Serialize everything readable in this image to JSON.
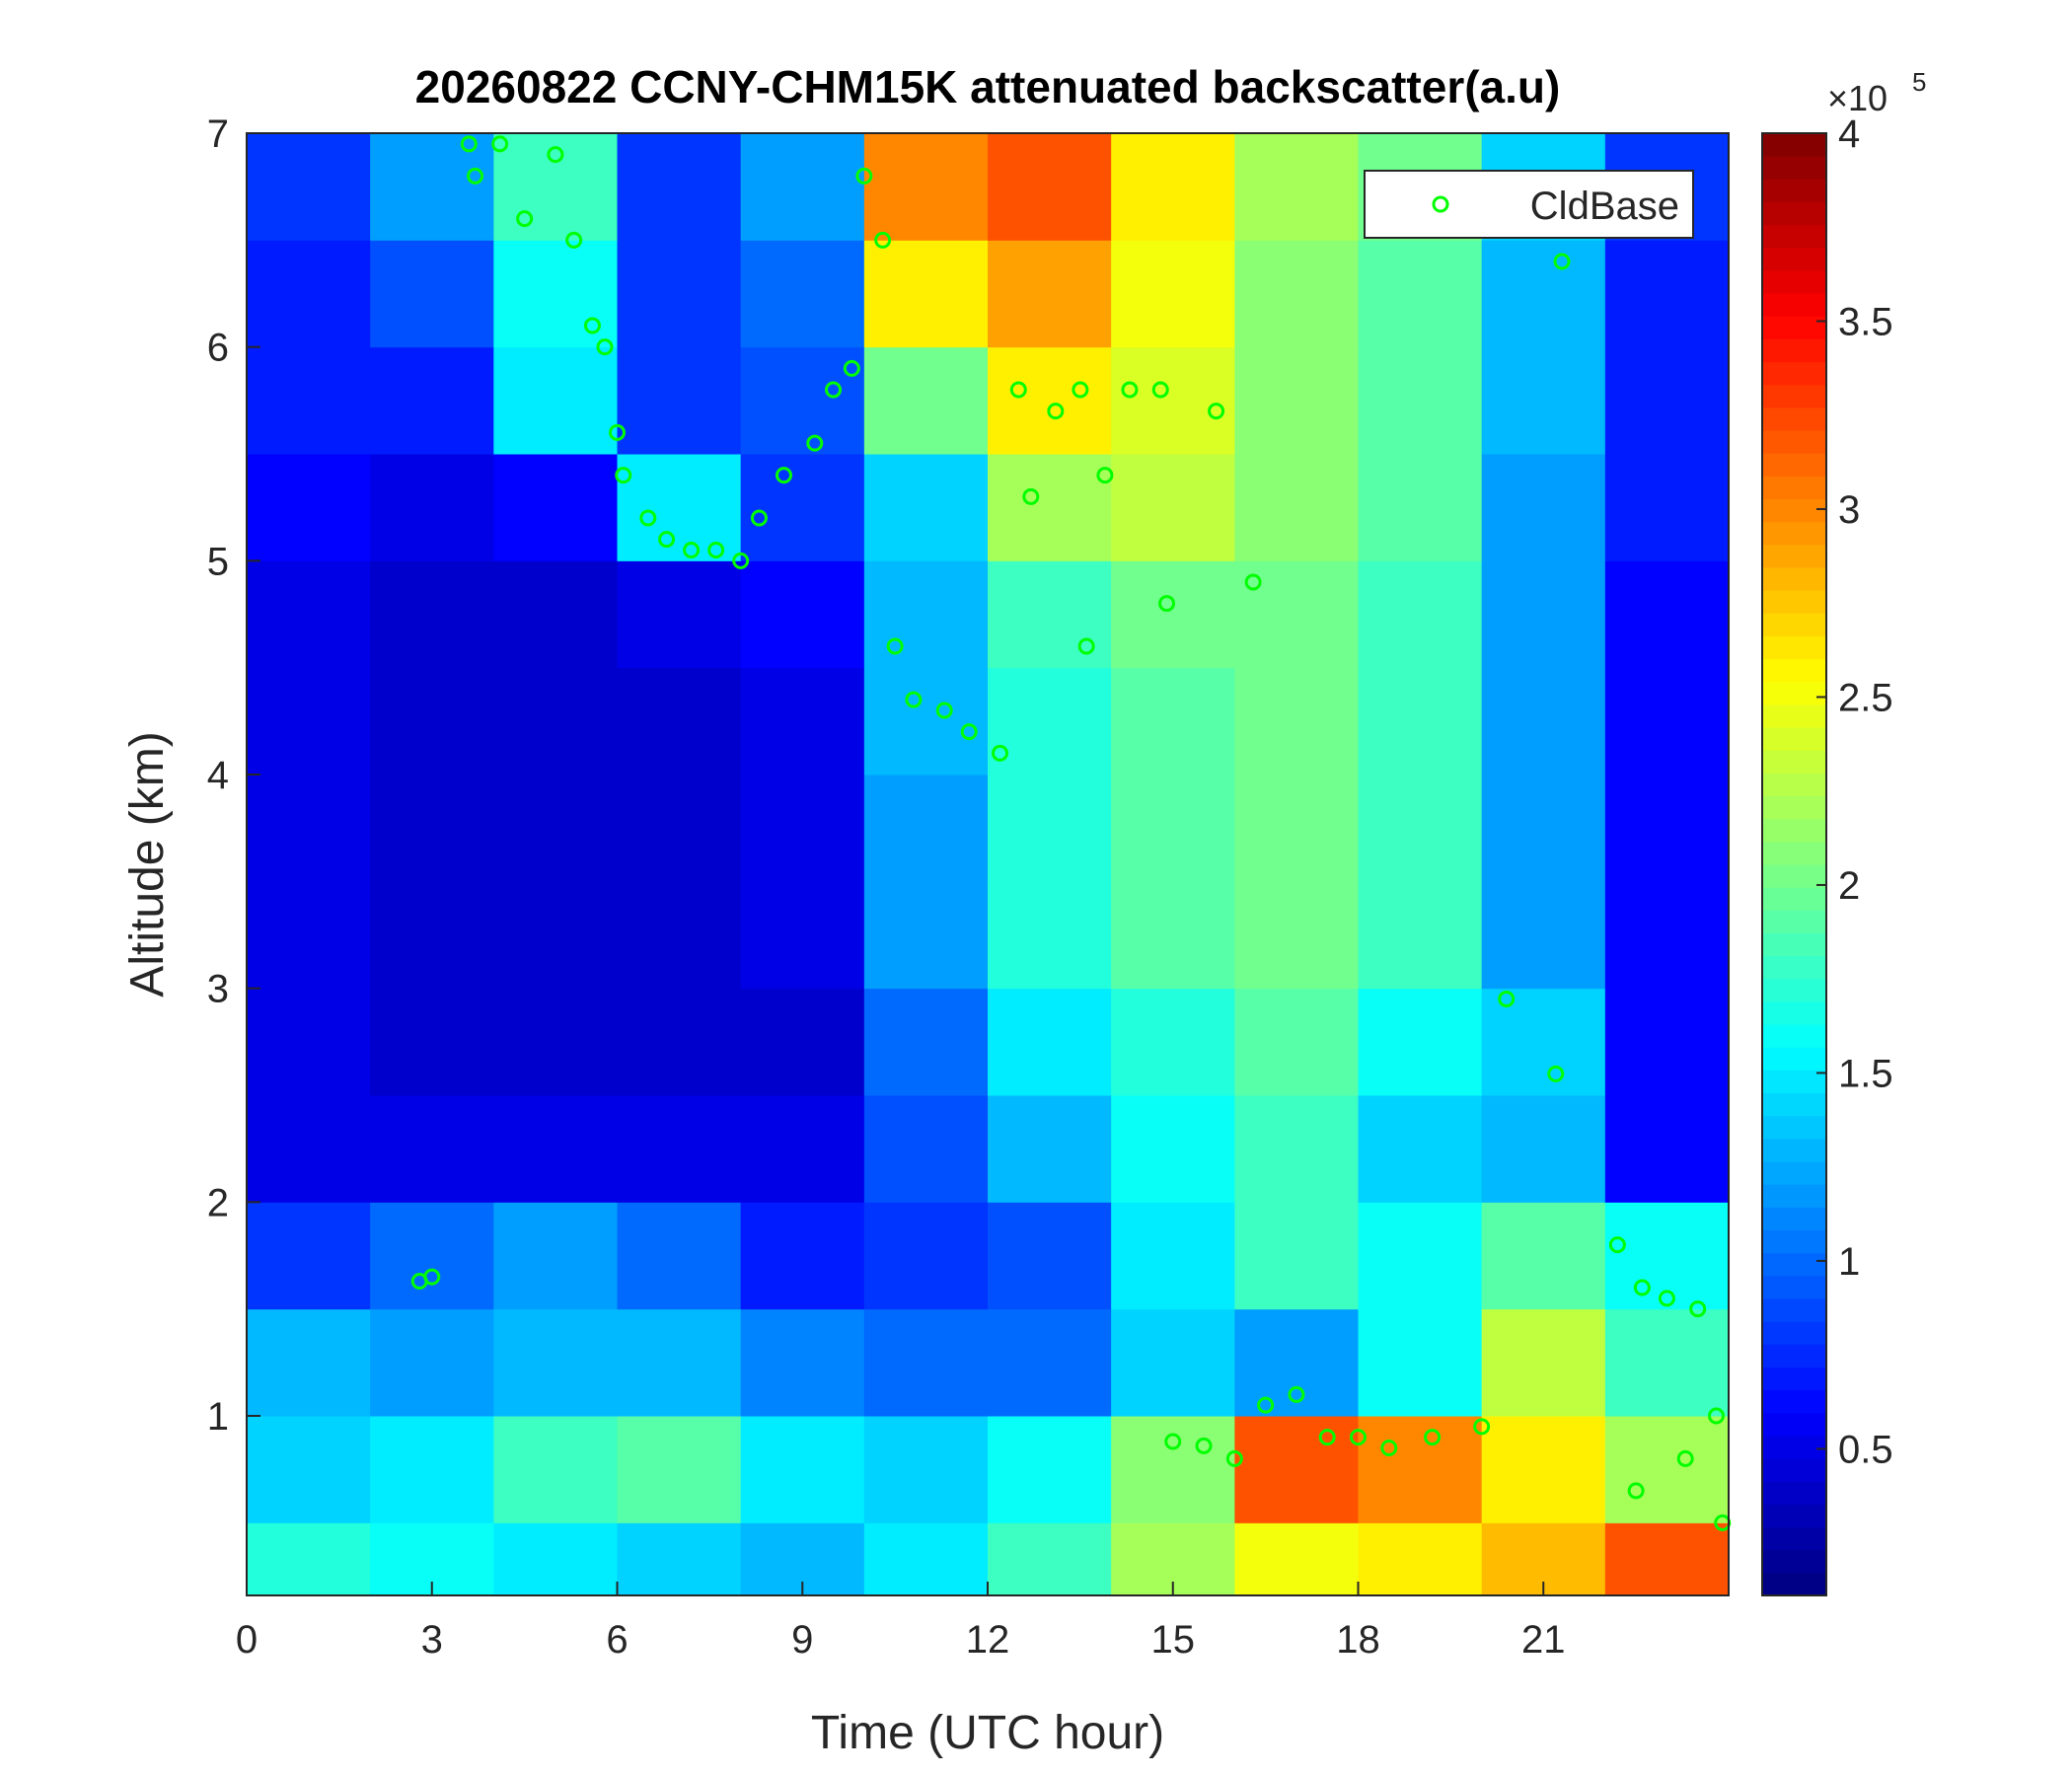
{
  "chart_data": {
    "type": "heatmap",
    "title": "20260822 CCNY-CHM15K attenuated backscatter(a.u)",
    "x_label": "Time (UTC hour)",
    "y_label": "Altitude (km)",
    "xlim": [
      0,
      24
    ],
    "ylim": [
      0.16,
      7
    ],
    "xticks": [
      0,
      3,
      6,
      9,
      12,
      15,
      18,
      21
    ],
    "yticks": [
      1,
      2,
      3,
      4,
      5,
      6,
      7
    ],
    "x_edges": [
      0,
      2,
      4,
      6,
      8,
      10,
      12,
      14,
      16,
      18,
      20,
      22,
      24
    ],
    "y_edges": [
      0.16,
      0.5,
      1,
      1.5,
      2,
      2.5,
      3,
      3.5,
      4,
      4.5,
      5,
      5.5,
      6,
      6.5,
      7
    ],
    "z": [
      [
        1.7,
        1.6,
        1.5,
        1.4,
        1.3,
        1.5,
        1.8,
        2.2,
        2.5,
        2.6,
        2.8,
        3.2
      ],
      [
        1.4,
        1.5,
        1.8,
        1.9,
        1.5,
        1.4,
        1.6,
        2.1,
        3.2,
        3.0,
        2.6,
        2.2
      ],
      [
        1.3,
        1.2,
        1.3,
        1.3,
        1.1,
        1.0,
        1.0,
        1.4,
        1.2,
        1.6,
        2.3,
        1.8
      ],
      [
        0.8,
        1.0,
        1.2,
        1.0,
        0.7,
        0.8,
        0.9,
        1.5,
        1.8,
        1.6,
        1.9,
        1.6
      ],
      [
        0.5,
        0.5,
        0.5,
        0.5,
        0.5,
        0.9,
        1.3,
        1.6,
        1.8,
        1.4,
        1.3,
        0.6
      ],
      [
        0.5,
        0.4,
        0.4,
        0.4,
        0.4,
        1.0,
        1.5,
        1.7,
        1.9,
        1.6,
        1.4,
        0.6
      ],
      [
        0.5,
        0.4,
        0.4,
        0.4,
        0.5,
        1.2,
        1.7,
        1.9,
        2.0,
        1.8,
        1.2,
        0.6
      ],
      [
        0.5,
        0.4,
        0.4,
        0.4,
        0.5,
        1.2,
        1.7,
        1.9,
        2.0,
        1.8,
        1.2,
        0.6
      ],
      [
        0.5,
        0.4,
        0.4,
        0.4,
        0.5,
        1.3,
        1.7,
        1.9,
        2.0,
        1.8,
        1.2,
        0.6
      ],
      [
        0.5,
        0.4,
        0.4,
        0.5,
        0.6,
        1.3,
        1.8,
        2.0,
        2.0,
        1.8,
        1.2,
        0.6
      ],
      [
        0.6,
        0.5,
        0.6,
        1.5,
        0.8,
        1.4,
        2.2,
        2.3,
        2.1,
        1.9,
        1.2,
        0.7
      ],
      [
        0.7,
        0.7,
        1.5,
        0.8,
        0.9,
        2.0,
        2.6,
        2.4,
        2.1,
        1.9,
        1.3,
        0.7
      ],
      [
        0.7,
        0.9,
        1.6,
        0.8,
        1.0,
        2.6,
        2.9,
        2.5,
        2.1,
        1.9,
        1.3,
        0.7
      ],
      [
        0.8,
        1.2,
        1.8,
        0.8,
        1.2,
        3.0,
        3.2,
        2.6,
        2.2,
        2.0,
        1.4,
        0.8
      ]
    ],
    "clim": [
      0.11,
      4
    ],
    "cticks": [
      0.5,
      1,
      1.5,
      2,
      2.5,
      3,
      3.5,
      4
    ],
    "colorbar_multiplier": "×10",
    "colorbar_exponent": "5",
    "series": [
      {
        "name": "CldBase",
        "color": "#00ff00",
        "x": [
          2.8,
          3,
          3.6,
          3.7,
          4.1,
          4.5,
          5,
          5.3,
          5.6,
          5.8,
          6,
          6.1,
          6.5,
          6.8,
          7.2,
          7.6,
          8,
          8.3,
          8.7,
          9.2,
          9.5,
          9.8,
          10,
          10.3,
          10.5,
          10.8,
          11.3,
          11.7,
          12.2,
          12.5,
          12.7,
          13.1,
          13.5,
          13.6,
          13.9,
          14.3,
          14.8,
          14.9,
          15.7,
          16.3,
          15,
          15.5,
          16,
          16.5,
          17,
          17.5,
          18,
          18.5,
          19.2,
          20,
          20.4,
          21.2,
          21.3,
          22.2,
          22.6,
          23,
          23.5,
          22.5,
          23.3,
          23.9,
          23.8
        ],
        "values": [
          1.63,
          1.65,
          6.95,
          6.8,
          6.95,
          6.6,
          6.9,
          6.5,
          6.1,
          6.0,
          5.6,
          5.4,
          5.2,
          5.1,
          5.05,
          5.05,
          5.0,
          5.2,
          5.4,
          5.55,
          5.8,
          5.9,
          6.8,
          6.5,
          4.6,
          4.35,
          4.3,
          4.2,
          4.1,
          5.8,
          5.3,
          5.7,
          5.8,
          4.6,
          5.4,
          5.8,
          5.8,
          4.8,
          5.7,
          4.9,
          0.88,
          0.86,
          0.8,
          1.05,
          1.1,
          0.9,
          0.9,
          0.85,
          0.9,
          0.95,
          2.95,
          2.6,
          6.4,
          1.8,
          1.6,
          1.55,
          1.5,
          0.65,
          0.8,
          0.5,
          1.0
        ]
      }
    ],
    "legend": "northeast"
  }
}
